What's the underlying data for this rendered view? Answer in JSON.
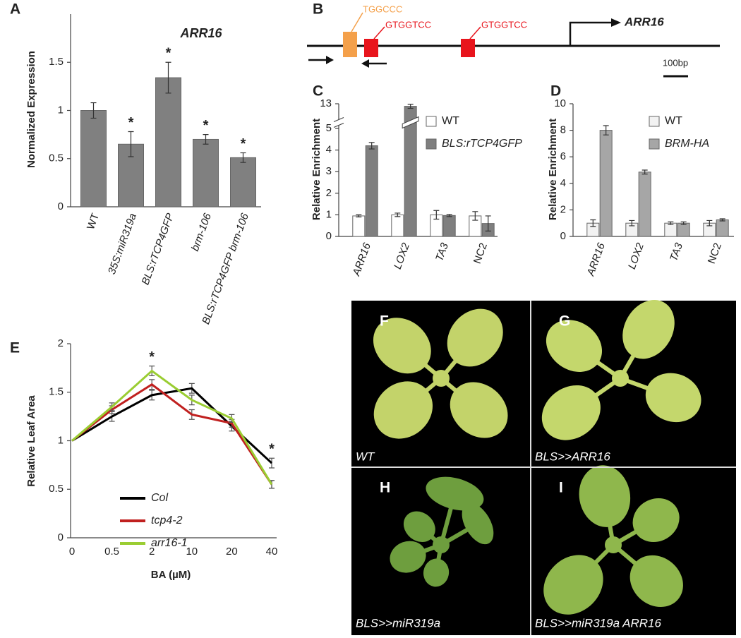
{
  "panel_labels": [
    "A",
    "B",
    "C",
    "D",
    "E"
  ],
  "chart_data": [
    {
      "type": "bar",
      "title": "ARR16",
      "y_label": "Normalized Expression",
      "categories": [
        "WT",
        "35S:miR319a",
        "BLS:rTCP4GFP",
        "brm-106",
        "BLS:rTCP4GFP brm-106"
      ],
      "italic_categories": [
        false,
        true,
        true,
        true,
        true
      ],
      "values": [
        1.0,
        0.65,
        1.34,
        0.7,
        0.51
      ],
      "errors": [
        0.08,
        0.13,
        0.16,
        0.05,
        0.05
      ],
      "significance": [
        null,
        "*",
        "*",
        "*",
        "*"
      ],
      "color": "#808080",
      "ylim": [
        0,
        2
      ],
      "yticks": [
        0,
        0.5,
        1,
        1.5
      ]
    },
    {
      "type": "bar",
      "y_label": "Relative Enrichment",
      "categories": [
        "ARR16",
        "LOX2",
        "TA3",
        "NC2"
      ],
      "italic_categories": [
        true,
        true,
        true,
        false
      ],
      "series": [
        {
          "name": "WT",
          "color": "#ffffff",
          "italic": false,
          "values": [
            0.95,
            1.0,
            1.0,
            0.95
          ],
          "errors": [
            0.05,
            0.08,
            0.2,
            0.2
          ]
        },
        {
          "name": "BLS:rTCP4GFP",
          "color": "#7f7f7f",
          "italic": true,
          "values": [
            4.2,
            12.9,
            0.97,
            0.6
          ],
          "errors": [
            0.15,
            0.08,
            0.05,
            0.35
          ]
        }
      ],
      "ylim": [
        0,
        13
      ],
      "ybreak": [
        5,
        12.5
      ],
      "yticks": [
        0,
        1,
        2,
        3,
        4,
        5,
        13
      ]
    },
    {
      "type": "bar",
      "y_label": "Relative Enrichment",
      "categories": [
        "ARR16",
        "LOX2",
        "TA3",
        "NC2"
      ],
      "italic_categories": [
        true,
        true,
        true,
        false
      ],
      "series": [
        {
          "name": "WT",
          "color": "#f2f2f2",
          "italic": false,
          "values": [
            1.0,
            1.0,
            1.0,
            1.0
          ],
          "errors": [
            0.25,
            0.2,
            0.1,
            0.2
          ]
        },
        {
          "name": "BRM-HA",
          "color": "#a6a6a6",
          "italic": true,
          "values": [
            8.0,
            4.85,
            1.0,
            1.25
          ],
          "errors": [
            0.35,
            0.15,
            0.1,
            0.08
          ]
        }
      ],
      "ylim": [
        0,
        10
      ],
      "yticks": [
        0,
        2,
        4,
        6,
        8,
        10
      ]
    },
    {
      "type": "line",
      "y_label": "Relative Leaf Area",
      "x_label": "BA (µM)",
      "categories": [
        "0",
        "0.5",
        "2",
        "10",
        "20",
        "40"
      ],
      "series": [
        {
          "name": "Col",
          "color": "#000000",
          "values": [
            1,
            1.25,
            1.47,
            1.54,
            1.15,
            0.77
          ],
          "errors": [
            0,
            0.05,
            0.05,
            0.05,
            0.05,
            0.05
          ]
        },
        {
          "name": "tcp4-2",
          "color": "#c0201f",
          "values": [
            1,
            1.32,
            1.58,
            1.27,
            1.18,
            0.55
          ],
          "errors": [
            0,
            0.04,
            0.05,
            0.05,
            0.04,
            0.04
          ]
        },
        {
          "name": "arr16-1",
          "color": "#9acd32",
          "values": [
            1,
            1.35,
            1.72,
            1.42,
            1.23,
            0.55
          ],
          "errors": [
            0,
            0.04,
            0.05,
            0.05,
            0.04,
            0.04
          ]
        }
      ],
      "significance": [
        null,
        null,
        "*",
        null,
        null,
        "*"
      ],
      "ylim": [
        0,
        2
      ],
      "yticks": [
        0,
        0.5,
        1,
        1.5,
        2
      ]
    }
  ],
  "diagram": {
    "motifs": [
      {
        "label": "TGGCCC",
        "color": "#f4a04a"
      },
      {
        "label": "GTGGTCC",
        "color": "#e8141c"
      },
      {
        "label": "GTGGTCC",
        "color": "#e8141c"
      }
    ],
    "gene": "ARR16",
    "scale_bar": "100bp"
  },
  "photos": [
    {
      "panel": "F",
      "caption": "WT"
    },
    {
      "panel": "G",
      "caption": "BLS>>ARR16"
    },
    {
      "panel": "H",
      "caption": "BLS>>miR319a"
    },
    {
      "panel": "I",
      "caption": "BLS>>miR319a  ARR16"
    }
  ]
}
